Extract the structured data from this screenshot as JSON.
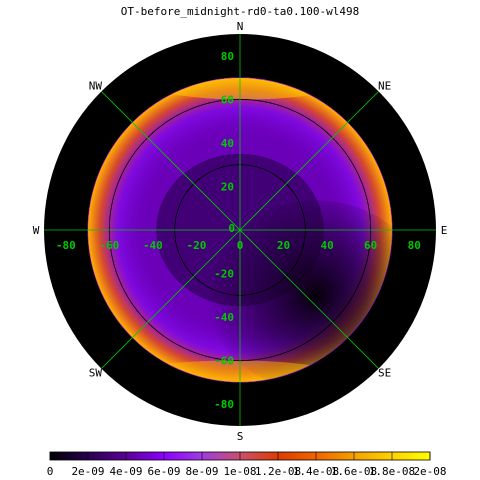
{
  "chart_data": {
    "type": "heatmap",
    "projection": "polar all-sky map",
    "title": "OT-before_midnight-rd0-ta0.100-wl498",
    "compass": [
      "N",
      "NE",
      "E",
      "SE",
      "S",
      "SW",
      "W",
      "NW"
    ],
    "x_ticks": [
      -80,
      -60,
      -40,
      -20,
      0,
      20,
      40,
      60,
      80
    ],
    "y_ticks": [
      80,
      60,
      40,
      20,
      0,
      -20,
      -40,
      -60,
      -80
    ],
    "axis_range": [
      -90,
      90
    ],
    "zenith_angle_circles": [
      30,
      60
    ],
    "data_disk_radius": 70,
    "value_range": [
      0,
      2e-08
    ],
    "colorbar_ticks": [
      "0",
      "2e-09",
      "4e-09",
      "6e-09",
      "8e-09",
      "1e-08",
      "1.2e-08",
      "1.4e-08",
      "1.6e-08",
      "1.8e-08",
      "2e-08"
    ],
    "colormap": [
      "#000000",
      "#2a0050",
      "#5a0096",
      "#8c00ff",
      "#a03ce0",
      "#c8506e",
      "#dc3c00",
      "#f06400",
      "#f5a000",
      "#ffd200",
      "#ffff00"
    ],
    "min_location": "south-east of zenith, approx (35, -30)",
    "max_location": "horizon rim near zenith angle 65-70"
  }
}
